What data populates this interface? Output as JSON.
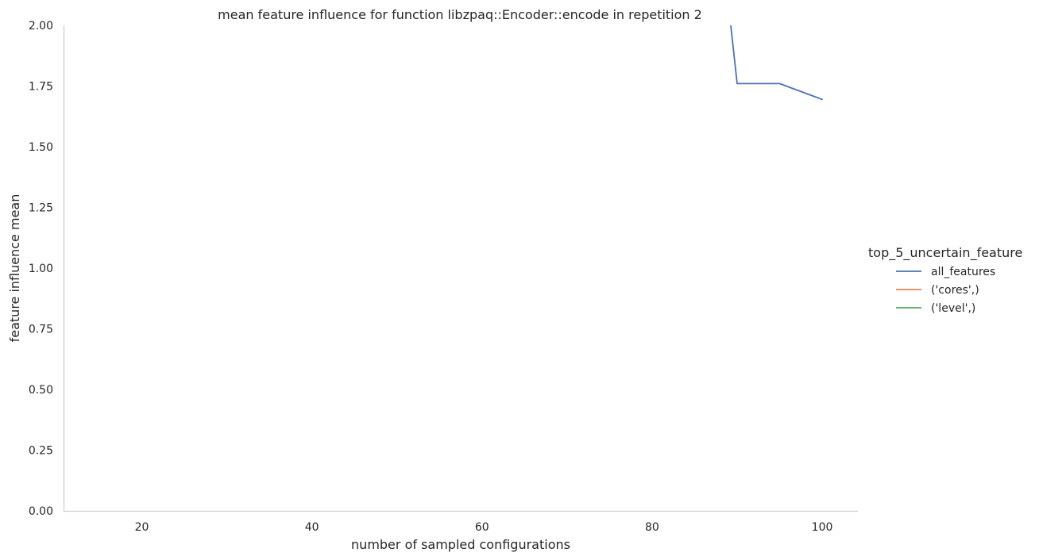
{
  "chart_data": {
    "type": "line",
    "title": "mean feature influence for function libzpaq::Encoder::encode in repetition 2",
    "xlabel": "number of sampled configurations",
    "ylabel": "feature influence mean",
    "xlim": [
      10.8,
      104.2
    ],
    "ylim": [
      0,
      2.0
    ],
    "x_ticks": [
      20,
      40,
      60,
      80,
      100
    ],
    "x_tick_labels": [
      "20",
      "40",
      "60",
      "80",
      "100"
    ],
    "y_ticks": [
      0,
      0.25,
      0.5,
      0.75,
      1.0,
      1.25,
      1.5,
      1.75,
      2.0
    ],
    "y_tick_labels": [
      "0.00",
      "0.25",
      "0.50",
      "0.75",
      "1.00",
      "1.25",
      "1.50",
      "1.75",
      "2.00"
    ],
    "grid": false,
    "legend": {
      "title": "top_5_uncertain_feature",
      "placement": "right"
    },
    "series": [
      {
        "name": "all_features",
        "color": "#4c72b0",
        "points": [
          {
            "x": 88,
            "y": 2.4
          },
          {
            "x": 90,
            "y": 1.76
          },
          {
            "x": 95,
            "y": 1.76
          },
          {
            "x": 100,
            "y": 1.695
          }
        ]
      },
      {
        "name": "('cores',)",
        "color": "#dd8452",
        "points": []
      },
      {
        "name": "('level',)",
        "color": "#55a868",
        "points": []
      }
    ]
  }
}
